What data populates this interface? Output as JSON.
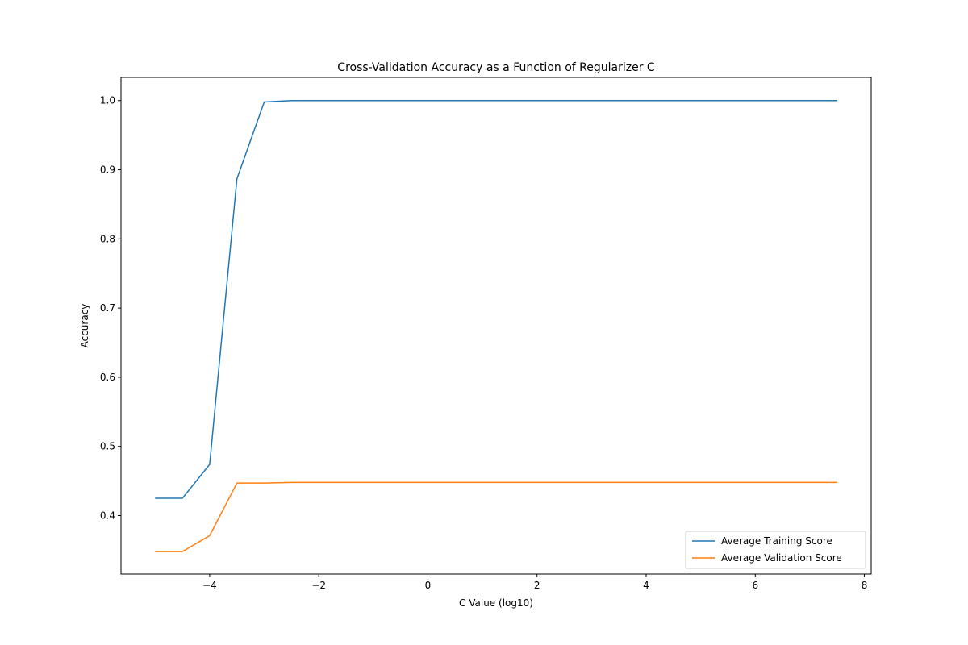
{
  "chart_data": {
    "type": "line",
    "title": "Cross-Validation Accuracy as a Function of Regularizer C",
    "xlabel": "C Value (log10)",
    "ylabel": "Accuracy",
    "xlim": [
      -5.625,
      8.125
    ],
    "ylim": [
      0.3155,
      1.0335
    ],
    "xticks": [
      -4,
      -2,
      0,
      2,
      4,
      6,
      8
    ],
    "xtick_labels": [
      "−4",
      "−2",
      "0",
      "2",
      "4",
      "6",
      "8"
    ],
    "yticks": [
      0.4,
      0.5,
      0.6,
      0.7,
      0.8,
      0.9,
      1.0
    ],
    "ytick_labels": [
      "0.4",
      "0.5",
      "0.6",
      "0.7",
      "0.8",
      "0.9",
      "1.0"
    ],
    "grid": false,
    "legend_position": "lower-right",
    "x": [
      -5,
      -4.5,
      -4,
      -3.5,
      -3,
      -2.5,
      -2,
      -1.5,
      -1,
      -0.5,
      0,
      0.5,
      1,
      1.5,
      2,
      2.5,
      3,
      3.5,
      4,
      4.5,
      5,
      5.5,
      6,
      6.5,
      7,
      7.5
    ],
    "series": [
      {
        "name": "Average Training Score",
        "color": "#1f77b4",
        "values": [
          0.425,
          0.425,
          0.474,
          0.887,
          0.998,
          1.0,
          1.0,
          1.0,
          1.0,
          1.0,
          1.0,
          1.0,
          1.0,
          1.0,
          1.0,
          1.0,
          1.0,
          1.0,
          1.0,
          1.0,
          1.0,
          1.0,
          1.0,
          1.0,
          1.0,
          1.0
        ]
      },
      {
        "name": "Average Validation Score",
        "color": "#ff7f0e",
        "values": [
          0.348,
          0.348,
          0.371,
          0.447,
          0.447,
          0.448,
          0.448,
          0.448,
          0.448,
          0.448,
          0.448,
          0.448,
          0.448,
          0.448,
          0.448,
          0.448,
          0.448,
          0.448,
          0.448,
          0.448,
          0.448,
          0.448,
          0.448,
          0.448,
          0.448,
          0.448
        ]
      }
    ]
  }
}
